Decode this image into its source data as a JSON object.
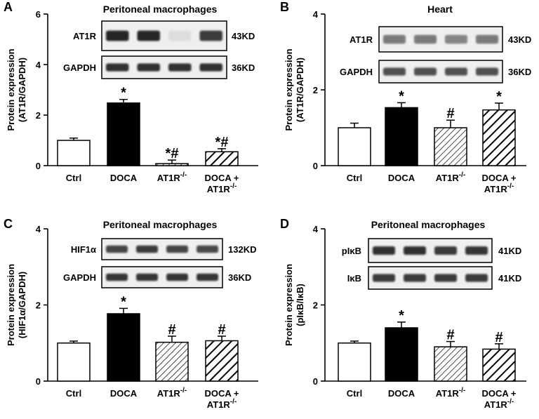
{
  "colors": {
    "ink": "#000000",
    "paper": "#ffffff",
    "band": "#1a1a1a",
    "blot_bg": "#efefef"
  },
  "chart_data": [
    {
      "panel": "A",
      "type": "bar",
      "title": "Peritoneal macrophages",
      "ylabel_line1": "Protein expression",
      "ylabel_line2": "(AT1R/GAPDH)",
      "ylim": [
        0,
        6
      ],
      "yticks": [
        "0",
        "2",
        "4",
        "6"
      ],
      "categories": [
        {
          "line1": "Ctrl",
          "line2": ""
        },
        {
          "line1": "DOCA",
          "line2": ""
        },
        {
          "line1": "AT1R",
          "sup": "-/-",
          "line2": ""
        },
        {
          "line1": "DOCA +",
          "line2": "AT1R",
          "sup2": "-/-"
        }
      ],
      "values": [
        1.0,
        2.48,
        0.08,
        0.55
      ],
      "errors": [
        0.09,
        0.14,
        0.14,
        0.12
      ],
      "fills": [
        "white",
        "black",
        "hatch",
        "hatch-bold"
      ],
      "annotations": [
        "",
        "*",
        "*#",
        "*#"
      ],
      "blot": {
        "rows": [
          {
            "label": "AT1R",
            "mw": "43KD",
            "intensity": [
              0.95,
              0.95,
              0.08,
              0.85
            ]
          },
          {
            "label": "GAPDH",
            "mw": "36KD",
            "intensity": [
              0.9,
              0.9,
              0.9,
              0.9
            ]
          }
        ]
      }
    },
    {
      "panel": "B",
      "type": "bar",
      "title": "Heart",
      "ylabel_line1": "Protein expression",
      "ylabel_line2": "(AT1R/GAPDH)",
      "ylim": [
        0,
        4
      ],
      "yticks": [
        "0",
        "2",
        "4"
      ],
      "categories": [
        {
          "line1": "Ctrl",
          "line2": ""
        },
        {
          "line1": "DOCA",
          "line2": ""
        },
        {
          "line1": "AT1R",
          "sup": "-/-",
          "line2": ""
        },
        {
          "line1": "DOCA +",
          "line2": "AT1R",
          "sup2": "-/-"
        }
      ],
      "values": [
        1.0,
        1.53,
        1.0,
        1.47
      ],
      "errors": [
        0.12,
        0.13,
        0.2,
        0.18
      ],
      "fills": [
        "white",
        "black",
        "hatch",
        "hatch-bold"
      ],
      "annotations": [
        "",
        "*",
        "#",
        "*"
      ],
      "blot": {
        "rows": [
          {
            "label": "AT1R",
            "mw": "43KD",
            "intensity": [
              0.55,
              0.55,
              0.5,
              0.55
            ]
          },
          {
            "label": "GAPDH",
            "mw": "36KD",
            "intensity": [
              0.75,
              0.75,
              0.75,
              0.75
            ]
          }
        ]
      }
    },
    {
      "panel": "C",
      "type": "bar",
      "title": "Peritoneal macrophages",
      "ylabel_line1": "Protein expression",
      "ylabel_line2": "(HIF1α/GAPDH)",
      "ylim": [
        0,
        4
      ],
      "yticks": [
        "0",
        "2",
        "4"
      ],
      "categories": [
        {
          "line1": "Ctrl",
          "line2": ""
        },
        {
          "line1": "DOCA",
          "line2": ""
        },
        {
          "line1": "AT1R",
          "sup": "-/-",
          "line2": ""
        },
        {
          "line1": "DOCA +",
          "line2": "AT1R",
          "sup2": "-/-"
        }
      ],
      "values": [
        1.0,
        1.77,
        1.02,
        1.06
      ],
      "errors": [
        0.05,
        0.14,
        0.16,
        0.12
      ],
      "fills": [
        "white",
        "black",
        "hatch",
        "hatch-bold"
      ],
      "annotations": [
        "",
        "*",
        "#",
        "#"
      ],
      "blot": {
        "rows": [
          {
            "label": "HIF1α",
            "mw": "132KD",
            "intensity": [
              0.8,
              0.85,
              0.8,
              0.78
            ]
          },
          {
            "label": "GAPDH",
            "mw": "36KD",
            "intensity": [
              0.88,
              0.88,
              0.88,
              0.88
            ]
          }
        ]
      }
    },
    {
      "panel": "D",
      "type": "bar",
      "title": "Peritoneal macrophages",
      "ylabel_line1": "Protein expression",
      "ylabel_line2": "(pIκB/IκB)",
      "ylim": [
        0,
        4
      ],
      "yticks": [
        "0",
        "2",
        "4"
      ],
      "categories": [
        {
          "line1": "Ctrl",
          "line2": ""
        },
        {
          "line1": "DOCA",
          "line2": ""
        },
        {
          "line1": "AT1R",
          "sup": "-/-",
          "line2": ""
        },
        {
          "line1": "DOCA +",
          "line2": "AT1R",
          "sup2": "-/-"
        }
      ],
      "values": [
        1.0,
        1.4,
        0.9,
        0.84
      ],
      "errors": [
        0.05,
        0.15,
        0.14,
        0.14
      ],
      "fills": [
        "white",
        "black",
        "hatch",
        "hatch-bold"
      ],
      "annotations": [
        "",
        "*",
        "#",
        "#"
      ],
      "blot": {
        "rows": [
          {
            "label": "pIκB",
            "mw": "41KD",
            "intensity": [
              0.9,
              0.9,
              0.85,
              0.88
            ]
          },
          {
            "label": "IκB",
            "mw": "41KD",
            "intensity": [
              0.85,
              0.85,
              0.85,
              0.85
            ]
          }
        ]
      }
    }
  ]
}
